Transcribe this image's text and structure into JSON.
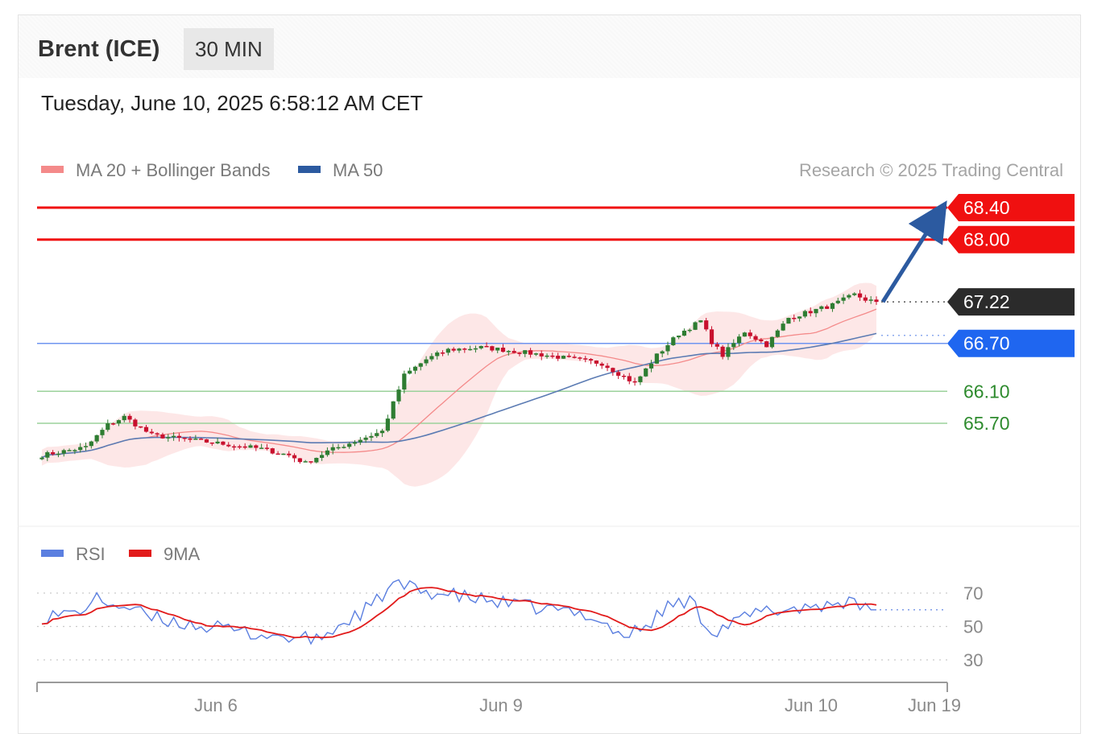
{
  "header": {
    "instrument": "Brent (ICE)",
    "timeframe": "30 MIN",
    "timestamp": "Tuesday, June 10, 2025 6:58:12 AM CET"
  },
  "legend": {
    "main": [
      {
        "label": "MA 20 + Bollinger Bands",
        "color": "#f48a8a"
      },
      {
        "label": "MA 50",
        "color": "#2c5aa0"
      }
    ],
    "rsi": [
      {
        "label": "RSI",
        "color": "#5b7fe0"
      },
      {
        "label": "9MA",
        "color": "#e21b1b"
      }
    ],
    "credit": "Research © 2025 Trading Central"
  },
  "colors": {
    "resistance": "#f01010",
    "pivot": "#1f66f0",
    "support": "#4caf50",
    "last_price": "#2b2b2b",
    "candle_up": "#c8102e",
    "candle_down": "#2e7d32",
    "arrow": "#2c5aa0"
  },
  "chart_data": [
    {
      "type": "candlestick",
      "y_range": [
        65.07,
        68.58
      ],
      "x_labels": [
        "Jun 6",
        "Jun 9",
        "Jun 10",
        "Jun 19"
      ],
      "levels": [
        {
          "label": "68.40",
          "value": 68.4,
          "kind": "resistance"
        },
        {
          "label": "68.00",
          "value": 68.0,
          "kind": "resistance"
        },
        {
          "label": "67.22",
          "value": 67.22,
          "kind": "last"
        },
        {
          "label": "66.70",
          "value": 66.7,
          "kind": "pivot"
        },
        {
          "label": "66.10",
          "value": 66.1,
          "kind": "support"
        },
        {
          "label": "65.70",
          "value": 65.7,
          "kind": "support"
        }
      ],
      "projection": {
        "from": 67.22,
        "to": 68.4
      },
      "price_waypoints": [
        [
          0,
          65.3
        ],
        [
          8,
          65.4
        ],
        [
          12,
          65.68
        ],
        [
          15,
          65.78
        ],
        [
          20,
          65.55
        ],
        [
          32,
          65.45
        ],
        [
          40,
          65.38
        ],
        [
          45,
          65.3
        ],
        [
          48,
          65.2
        ],
        [
          52,
          65.35
        ],
        [
          58,
          65.5
        ],
        [
          62,
          65.6
        ],
        [
          64,
          65.95
        ],
        [
          66,
          66.3
        ],
        [
          70,
          66.5
        ],
        [
          74,
          66.62
        ],
        [
          80,
          66.65
        ],
        [
          84,
          66.62
        ],
        [
          92,
          66.55
        ],
        [
          102,
          66.45
        ],
        [
          108,
          66.2
        ],
        [
          112,
          66.55
        ],
        [
          116,
          66.82
        ],
        [
          120,
          66.98
        ],
        [
          122,
          66.72
        ],
        [
          124,
          66.55
        ],
        [
          128,
          66.85
        ],
        [
          132,
          66.68
        ],
        [
          136,
          67.02
        ],
        [
          144,
          67.18
        ],
        [
          148,
          67.31
        ],
        [
          150,
          67.25
        ],
        [
          152,
          67.22
        ]
      ]
    },
    {
      "type": "line",
      "name": "RSI",
      "y_ticks": [
        30,
        50,
        70
      ],
      "y_range": [
        25,
        80
      ],
      "last_rsi": 60,
      "rsi_waypoints": [
        [
          0,
          56
        ],
        [
          6,
          58
        ],
        [
          10,
          66
        ],
        [
          15,
          62
        ],
        [
          20,
          55
        ],
        [
          30,
          50
        ],
        [
          38,
          46
        ],
        [
          46,
          43
        ],
        [
          50,
          42
        ],
        [
          55,
          52
        ],
        [
          60,
          62
        ],
        [
          64,
          75
        ],
        [
          70,
          71
        ],
        [
          76,
          68
        ],
        [
          80,
          66
        ],
        [
          88,
          62
        ],
        [
          100,
          57
        ],
        [
          106,
          44
        ],
        [
          110,
          50
        ],
        [
          114,
          62
        ],
        [
          118,
          66
        ],
        [
          122,
          47
        ],
        [
          126,
          52
        ],
        [
          130,
          58
        ],
        [
          140,
          62
        ],
        [
          146,
          65
        ],
        [
          150,
          60
        ],
        [
          152,
          60
        ]
      ]
    }
  ]
}
